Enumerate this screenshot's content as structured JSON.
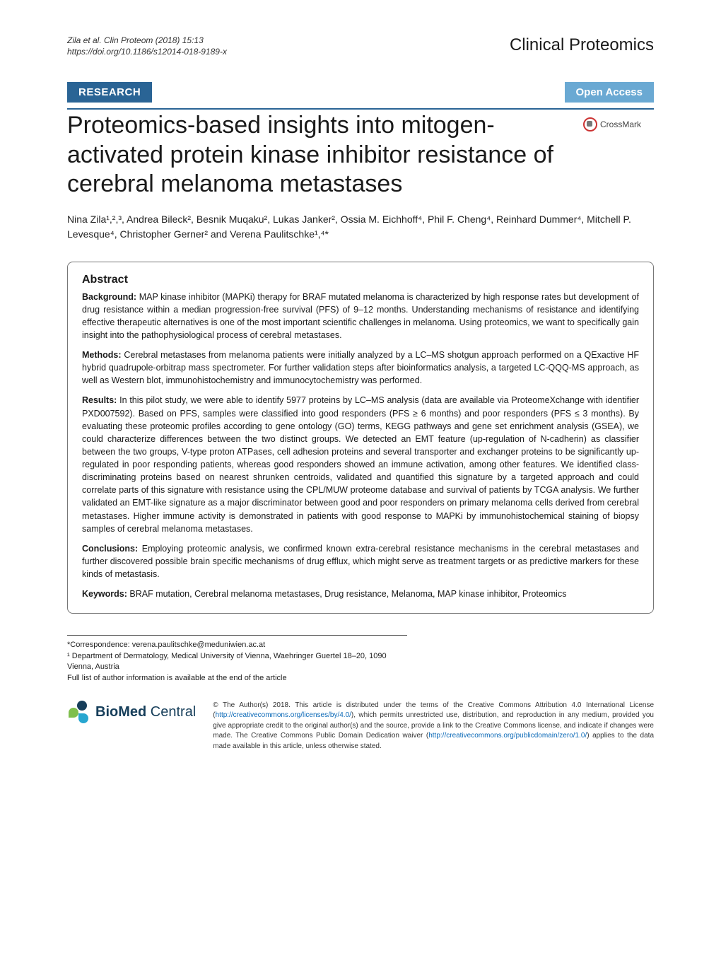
{
  "header": {
    "citation_line1": "Zila et al. Clin Proteom  (2018) 15:13",
    "citation_line2": "https://doi.org/10.1186/s12014-018-9189-x",
    "journal": "Clinical Proteomics"
  },
  "banners": {
    "research": "RESEARCH",
    "open_access": "Open Access",
    "crossmark": "CrossMark"
  },
  "title": "Proteomics-based insights into mitogen-activated protein kinase inhibitor resistance of cerebral melanoma metastases",
  "authors": "Nina Zila¹,²,³, Andrea Bileck², Besnik Muqaku², Lukas Janker², Ossia M. Eichhoff⁴, Phil F. Cheng⁴, Reinhard Dummer⁴, Mitchell P. Levesque⁴, Christopher Gerner² and Verena Paulitschke¹,⁴*",
  "abstract": {
    "heading": "Abstract",
    "background_label": "Background:",
    "background_text": "  MAP kinase inhibitor (MAPKi) therapy for BRAF mutated melanoma is characterized by high response rates but development of drug resistance within a median progression-free survival (PFS) of 9–12 months. Understanding mechanisms of resistance and identifying effective therapeutic alternatives is one of the most important scientific challenges in melanoma. Using proteomics, we want to specifically gain insight into the pathophysiological process of cerebral metastases.",
    "methods_label": "Methods:",
    "methods_text": "  Cerebral metastases from melanoma patients were initially analyzed by a LC–MS shotgun approach performed on a QExactive HF hybrid quadrupole-orbitrap mass spectrometer. For further validation steps after bioinformatics analysis, a targeted LC-QQQ-MS approach, as well as Western blot, immunohistochemistry and immunocytochemistry was performed.",
    "results_label": "Results:",
    "results_text": "  In this pilot study, we were able to identify 5977 proteins by LC–MS analysis (data are available via ProteomeXchange with identifier PXD007592). Based on PFS, samples were classified into good responders (PFS ≥ 6 months) and poor responders (PFS ≤ 3 months). By evaluating these proteomic profiles according to gene ontology (GO) terms, KEGG pathways and gene set enrichment analysis (GSEA), we could characterize differences between the two distinct groups. We detected an EMT feature (up-regulation of N-cadherin) as classifier between the two groups, V-type proton ATPases, cell adhesion proteins and several transporter and exchanger proteins to be significantly up-regulated in poor responding patients, whereas good responders showed an immune activation, among other features. We identified class-discriminating proteins based on nearest shrunken centroids, validated and quantified this signature by a targeted approach and could correlate parts of this signature with resistance using the CPL/MUW proteome database and survival of patients by TCGA analysis. We further validated an EMT-like signature as a major discriminator between good and poor responders on primary melanoma cells derived from cerebral metastases. Higher immune activity is demonstrated in patients with good response to MAPKi by immunohistochemical staining of biopsy samples of cerebral melanoma metastases.",
    "conclusions_label": "Conclusions:",
    "conclusions_text": "  Employing proteomic analysis, we confirmed known extra-cerebral resistance mechanisms in the cerebral metastases and further discovered possible brain specific mechanisms of drug efflux, which might serve as treatment targets or as predictive markers for these kinds of metastasis.",
    "keywords_label": "Keywords:",
    "keywords_text": "  BRAF mutation, Cerebral melanoma metastases, Drug resistance, Melanoma, MAP kinase inhibitor, Proteomics"
  },
  "footnotes": {
    "correspondence": "*Correspondence:  verena.paulitschke@meduniwien.ac.at",
    "affiliation": "¹ Department of Dermatology, Medical University of Vienna, Waehringer Guertel 18–20, 1090 Vienna, Austria",
    "full_list": "Full list of author information is available at the end of the article"
  },
  "footer": {
    "logo_text": "BioMed Central",
    "copyright_pre": "© The Author(s) 2018. This article is distributed under the terms of the Creative Commons Attribution 4.0 International License (",
    "license_url": "http://creativecommons.org/licenses/by/4.0/",
    "copyright_mid": "), which permits unrestricted use, distribution, and reproduction in any medium, provided you give appropriate credit to the original author(s) and the source, provide a link to the Creative Commons license, and indicate if changes were made. The Creative Commons Public Domain Dedication waiver (",
    "waiver_url": "http://creativecommons.org/publicdomain/zero/1.0/",
    "copyright_post": ") applies to the data made available in this article, unless otherwise stated."
  },
  "colors": {
    "research_bg": "#2a6495",
    "open_access_bg": "#6aa9d3",
    "text": "#1a1a1a",
    "link": "#0b69b7",
    "rule": "#2a6495",
    "crossmark_ring": "#c33"
  },
  "typography": {
    "title_fontsize": 34,
    "journal_fontsize": 24,
    "body_fontsize": 12.5,
    "footnote_fontsize": 11,
    "copyright_fontsize": 10
  }
}
